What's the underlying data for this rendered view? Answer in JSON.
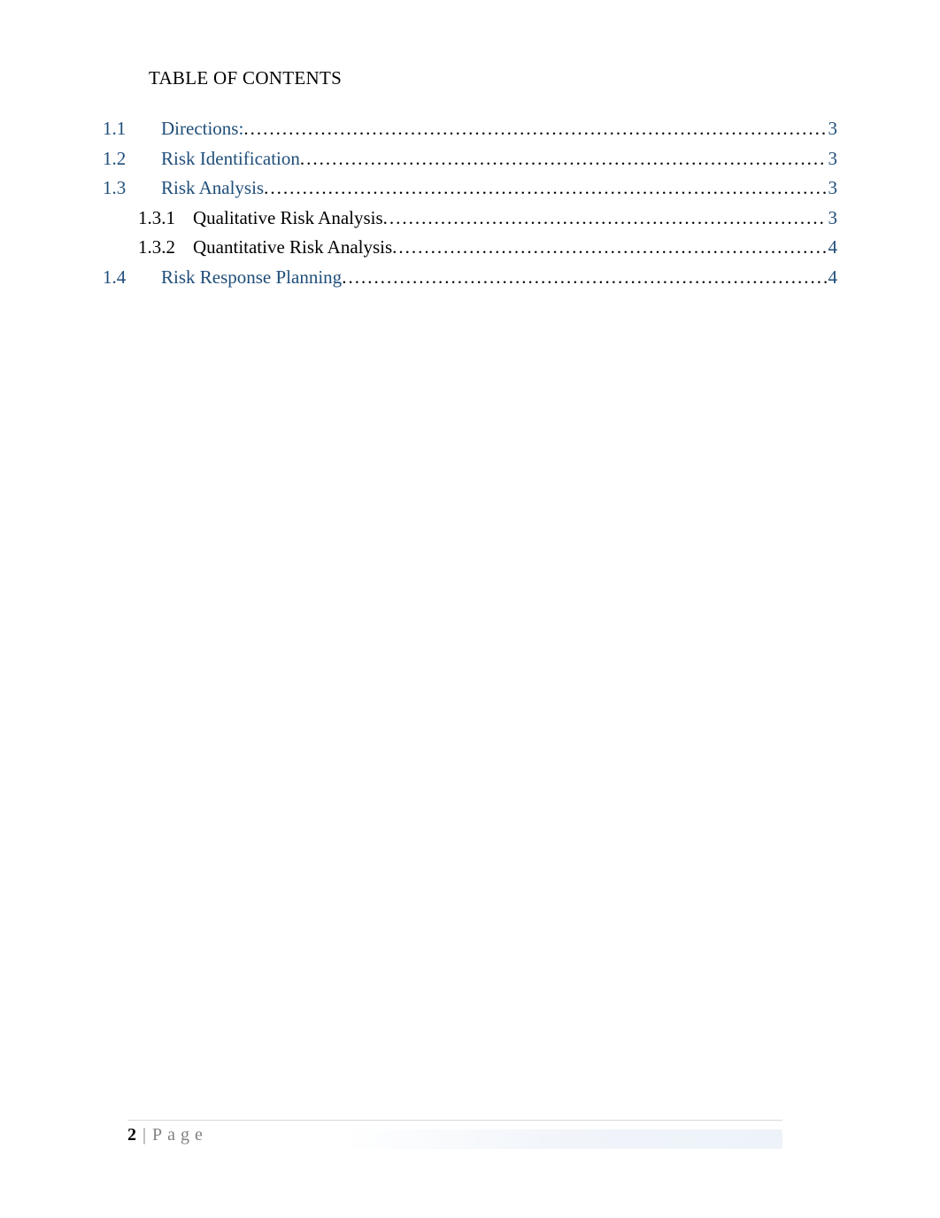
{
  "title": "TABLE OF CONTENTS",
  "link_color": "#1f4e79",
  "text_color": "#000000",
  "footer": {
    "page_number": "2",
    "separator": "|",
    "label": "Page"
  },
  "toc": [
    {
      "level": 1,
      "num": "1.1",
      "label": "Directions:",
      "page": "3",
      "link": true
    },
    {
      "level": 1,
      "num": "1.2",
      "label": "Risk Identification",
      "page": "3",
      "link": true
    },
    {
      "level": 1,
      "num": "1.3",
      "label": "Risk Analysis",
      "page": "3",
      "link": true
    },
    {
      "level": 2,
      "num": "1.3.1",
      "label": "Qualitative Risk Analysis",
      "page": "3",
      "link": false
    },
    {
      "level": 2,
      "num": "1.3.2",
      "label": "Quantitative Risk Analysis",
      "page": "4",
      "link": false
    },
    {
      "level": 1,
      "num": "1.4",
      "label": "Risk Response Planning",
      "page": "4",
      "link": true
    }
  ]
}
